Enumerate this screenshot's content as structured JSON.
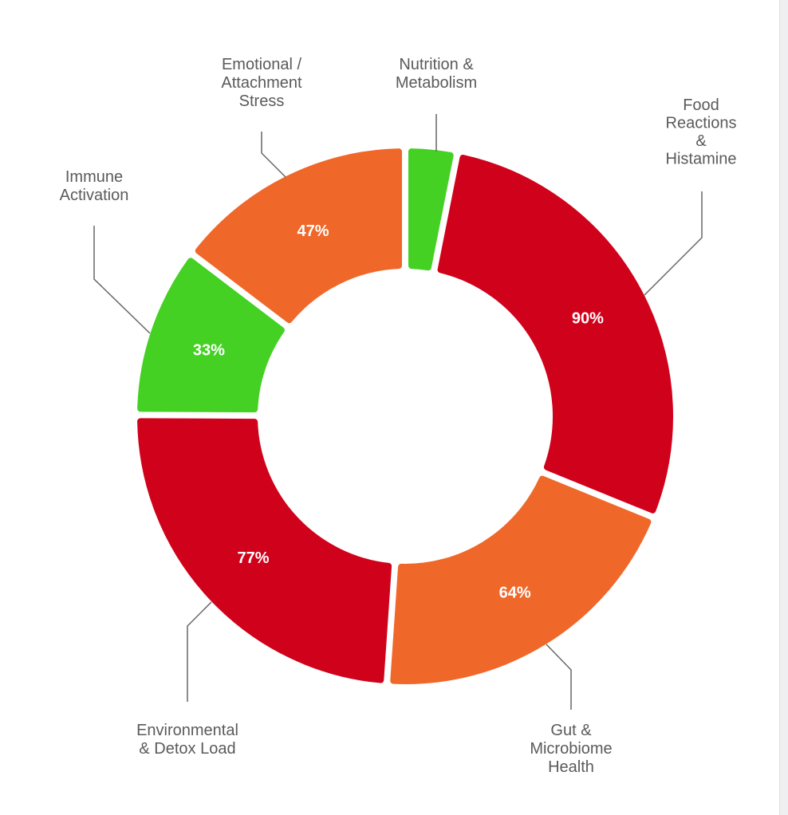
{
  "chart_data": {
    "type": "pie",
    "subtype": "donut",
    "legend": "none",
    "slices": [
      {
        "label_lines": [
          "Nutrition &",
          "Metabolism"
        ],
        "value": 10,
        "value_label": "",
        "color": "#44D123"
      },
      {
        "label_lines": [
          "Food",
          "Reactions",
          "&",
          "Histamine"
        ],
        "value": 90,
        "value_label": "90%",
        "color": "#D0021B"
      },
      {
        "label_lines": [
          "Gut &",
          "Microbiome",
          "Health"
        ],
        "value": 64,
        "value_label": "64%",
        "color": "#F0672A"
      },
      {
        "label_lines": [
          "Environmental",
          "& Detox Load"
        ],
        "value": 77,
        "value_label": "77%",
        "color": "#D0021B"
      },
      {
        "label_lines": [
          "Immune",
          "Activation"
        ],
        "value": 33,
        "value_label": "33%",
        "color": "#44D123"
      },
      {
        "label_lines": [
          "Emotional /",
          "Attachment",
          "Stress"
        ],
        "value": 47,
        "value_label": "47%",
        "color": "#F0672A"
      }
    ]
  }
}
